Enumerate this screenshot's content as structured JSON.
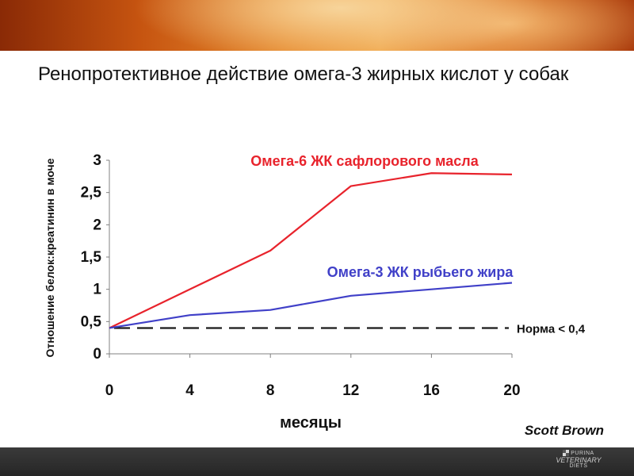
{
  "slide": {
    "title": "Ренопротективное действие омега-3 жирных кислот у собак",
    "author": "Scott Brown",
    "brand": {
      "line1": "PURINA",
      "line2": "VETERINARY",
      "line3": "DIETS"
    }
  },
  "colors": {
    "series_red": "#e8232c",
    "series_blue": "#4040c8",
    "banner": "#d4681a"
  },
  "chart_data": {
    "type": "line",
    "title": "",
    "xlabel": "месяцы",
    "ylabel": "Отношение белок:креатинин в моче",
    "x": [
      0,
      4,
      8,
      12,
      16,
      20
    ],
    "xticks": [
      "0",
      "4",
      "8",
      "12",
      "16",
      "20"
    ],
    "yticks": [
      {
        "value": 0,
        "label": "0"
      },
      {
        "value": 0.5,
        "label": "0,5"
      },
      {
        "value": 1,
        "label": "1"
      },
      {
        "value": 1.5,
        "label": "1,5"
      },
      {
        "value": 2,
        "label": "2"
      },
      {
        "value": 2.5,
        "label": "2,5"
      },
      {
        "value": 3,
        "label": "3"
      }
    ],
    "xlim": [
      0,
      20
    ],
    "ylim": [
      0,
      3
    ],
    "grid": false,
    "series": [
      {
        "name": "Омега-6 ЖК сафлорового масла",
        "color": "#e8232c",
        "values": [
          0.4,
          1.0,
          1.6,
          2.6,
          2.8,
          2.78
        ]
      },
      {
        "name": "Омега-3 ЖК рыбьего жира",
        "color": "#4040c8",
        "values": [
          0.4,
          0.6,
          0.68,
          0.9,
          1.0,
          1.1
        ]
      }
    ],
    "reference_line": {
      "value": 0.4,
      "label": "Норма < 0,4",
      "style": "dashed"
    }
  }
}
